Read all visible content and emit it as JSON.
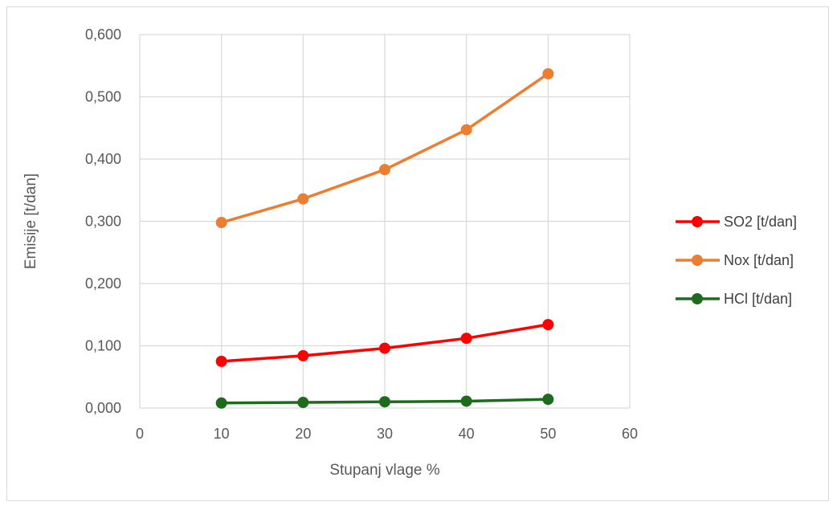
{
  "chart_data": {
    "type": "scatter",
    "title": "",
    "xlabel": "Stupanj vlage %",
    "ylabel": "Emisije [t/dan]",
    "xlim": [
      0,
      60
    ],
    "ylim": [
      0,
      0.6
    ],
    "x_ticks": [
      "0",
      "10",
      "20",
      "30",
      "40",
      "50",
      "60"
    ],
    "y_ticks": [
      "0,000",
      "0,100",
      "0,200",
      "0,300",
      "0,400",
      "0,500",
      "0,600"
    ],
    "grid": true,
    "legend_position": "right",
    "series": [
      {
        "name": "SO2 [t/dan]",
        "color": "#ff0000",
        "x": [
          10,
          20,
          30,
          40,
          50
        ],
        "y": [
          0.075,
          0.084,
          0.096,
          0.112,
          0.134
        ]
      },
      {
        "name": "Nox [t/dan]",
        "color": "#ed7d31",
        "x": [
          10,
          20,
          30,
          40,
          50
        ],
        "y": [
          0.298,
          0.336,
          0.383,
          0.447,
          0.537
        ]
      },
      {
        "name": "HCl [t/dan]",
        "color": "#1e6b1e",
        "x": [
          10,
          20,
          30,
          40,
          50
        ],
        "y": [
          0.008,
          0.009,
          0.01,
          0.011,
          0.014
        ]
      }
    ]
  }
}
